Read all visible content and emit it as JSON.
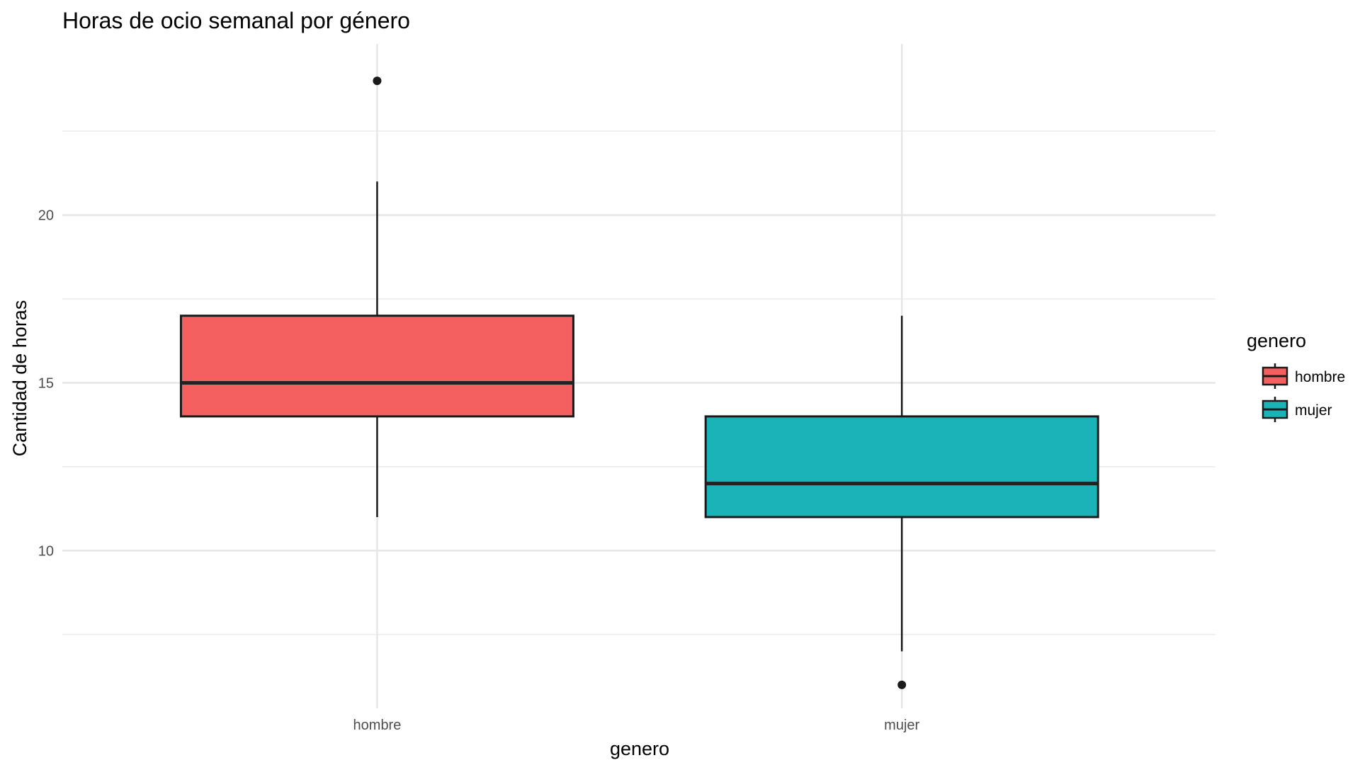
{
  "chart_data": {
    "type": "boxplot",
    "title": "Horas de ocio semanal por género",
    "xlabel": "genero",
    "ylabel": "Cantidad de horas",
    "categories": [
      "hombre",
      "mujer"
    ],
    "ylim": [
      5.3,
      25.1
    ],
    "yticks": [
      10,
      15,
      20
    ],
    "ytick_labels": [
      "10",
      "15",
      "20"
    ],
    "grid": true,
    "legend": {
      "title": "genero",
      "position": "right",
      "entries": [
        "hombre",
        "mujer"
      ]
    },
    "series": [
      {
        "category": "hombre",
        "color": "#F46060",
        "whisker_low": 11,
        "q1": 14,
        "median": 15,
        "q3": 17,
        "whisker_high": 21,
        "outliers": [
          24
        ]
      },
      {
        "category": "mujer",
        "color": "#1AB3B7",
        "whisker_low": 7,
        "q1": 11,
        "median": 12,
        "q3": 14,
        "whisker_high": 17,
        "outliers": [
          6
        ]
      }
    ]
  }
}
